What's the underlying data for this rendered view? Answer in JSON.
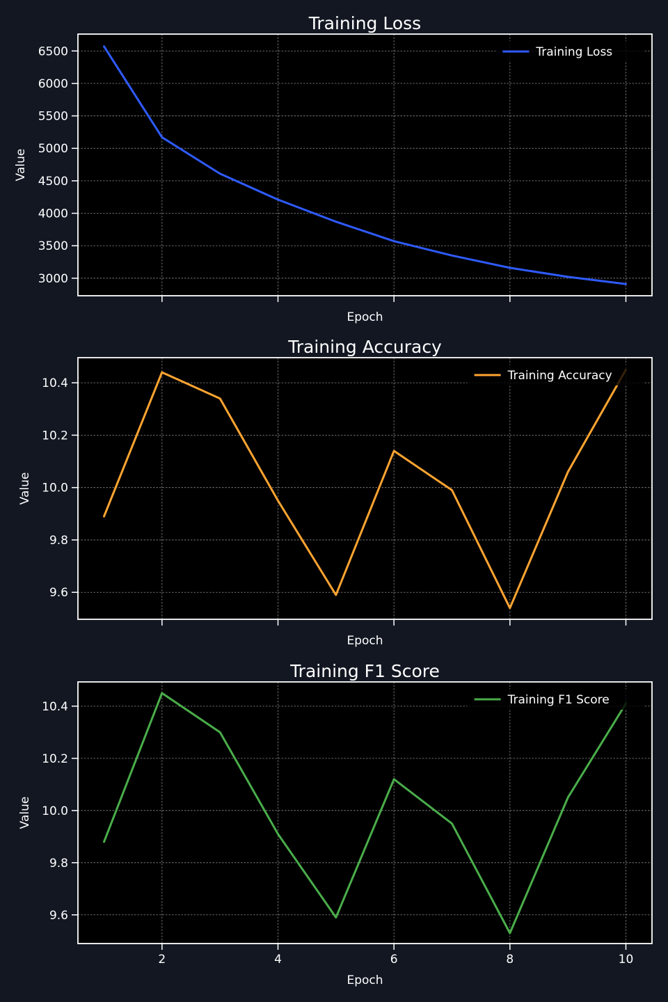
{
  "figure": {
    "background": "#121722",
    "plot_background": "#000000",
    "frame_color": "#ffffff",
    "grid_color": "#8a8a8a"
  },
  "chart_data": [
    {
      "type": "line",
      "title": "Training Loss",
      "xlabel": "Epoch",
      "ylabel": "Value",
      "x": [
        1,
        2,
        3,
        4,
        5,
        6,
        7,
        8,
        9,
        10
      ],
      "xlim": [
        0.55,
        10.45
      ],
      "ylim": [
        2730,
        6760
      ],
      "xticks": [
        2,
        4,
        6,
        8,
        10
      ],
      "yticks": [
        3000,
        3500,
        4000,
        4500,
        5000,
        5500,
        6000,
        6500
      ],
      "show_xtick_labels": false,
      "grid": true,
      "legend_position": "top-right",
      "series": [
        {
          "name": "Training Loss",
          "color": "#2f5bff",
          "values": [
            6570,
            5170,
            4610,
            4210,
            3870,
            3570,
            3350,
            3160,
            3020,
            2910
          ]
        }
      ]
    },
    {
      "type": "line",
      "title": "Training Accuracy",
      "xlabel": "Epoch",
      "ylabel": "Value",
      "x": [
        1,
        2,
        3,
        4,
        5,
        6,
        7,
        8,
        9,
        10
      ],
      "xlim": [
        0.55,
        10.45
      ],
      "ylim": [
        9.497,
        10.496
      ],
      "xticks": [
        2,
        4,
        6,
        8,
        10
      ],
      "yticks": [
        "9.6",
        "9.8",
        "10.0",
        "10.2",
        "10.4"
      ],
      "show_xtick_labels": false,
      "grid": true,
      "legend_position": "top-right",
      "series": [
        {
          "name": "Training Accuracy",
          "color": "#ffa431",
          "values": [
            9.89,
            10.44,
            10.34,
            9.95,
            9.59,
            10.14,
            9.99,
            9.54,
            10.06,
            10.45
          ]
        }
      ]
    },
    {
      "type": "line",
      "title": "Training F1 Score",
      "xlabel": "Epoch",
      "ylabel": "Value",
      "x": [
        1,
        2,
        3,
        4,
        5,
        6,
        7,
        8,
        9,
        10
      ],
      "xlim": [
        0.55,
        10.45
      ],
      "ylim": [
        9.49,
        10.493
      ],
      "xticks": [
        2,
        4,
        6,
        8,
        10
      ],
      "yticks": [
        "9.6",
        "9.8",
        "10.0",
        "10.2",
        "10.4"
      ],
      "show_xtick_labels": true,
      "grid": true,
      "legend_position": "top-right",
      "series": [
        {
          "name": "Training F1 Score",
          "color": "#4aad4a",
          "values": [
            9.88,
            10.45,
            10.3,
            9.91,
            9.59,
            10.12,
            9.95,
            9.53,
            10.05,
            10.41
          ]
        }
      ]
    }
  ]
}
